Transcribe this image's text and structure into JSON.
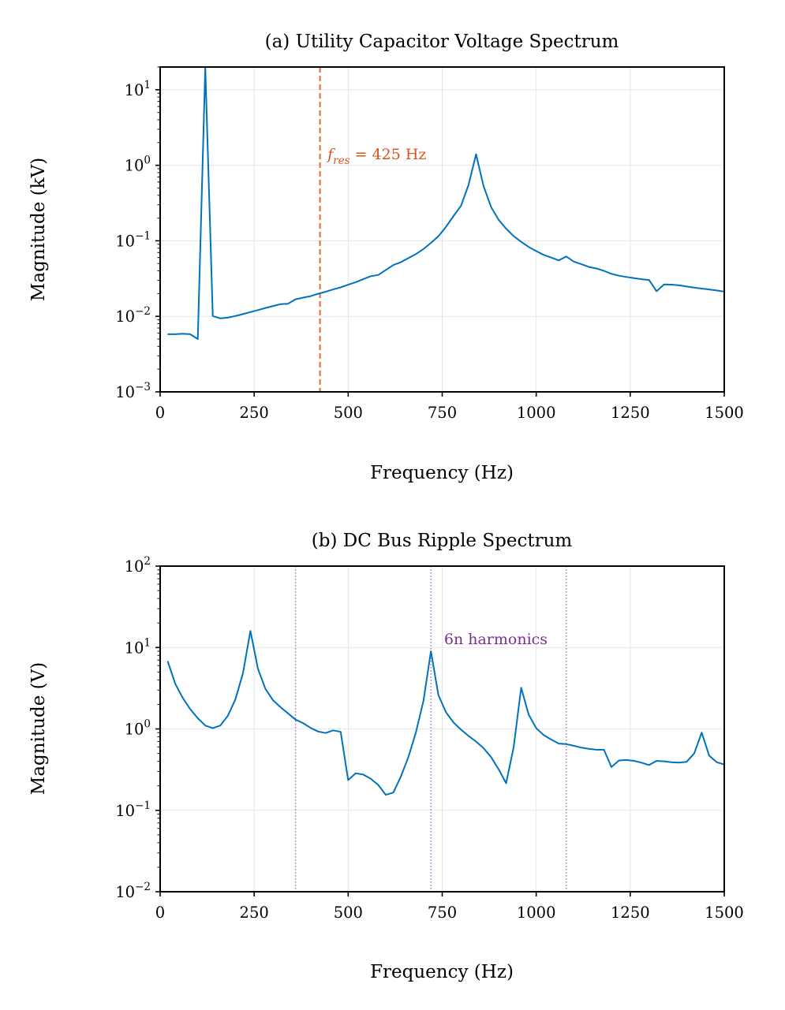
{
  "chart_data": [
    {
      "type": "line",
      "title": "(a) Utility Capacitor Voltage Spectrum",
      "xlabel": "Frequency (Hz)",
      "ylabel": "Magnitude (kV)",
      "xlim": [
        0,
        1500
      ],
      "ylim": [
        0.001,
        20
      ],
      "yscale": "log",
      "grid": true,
      "xticks": [
        "0",
        "250",
        "500",
        "750",
        "1000",
        "1250",
        "1500"
      ],
      "xtick_values": [
        0,
        250,
        500,
        750,
        1000,
        1250,
        1500
      ],
      "ytick_exponents": [
        "-3",
        "-2",
        "-1",
        "0",
        "1"
      ],
      "ytick_base": "10",
      "series_color": "#0072bd",
      "series": [
        {
          "x": [
            20,
            40,
            60,
            80,
            100,
            120,
            140,
            160,
            180,
            200,
            220,
            240,
            260,
            280,
            300,
            320,
            340,
            360,
            380,
            400,
            420,
            440,
            460,
            480,
            500,
            520,
            540,
            560,
            580,
            600,
            620,
            640,
            660,
            680,
            700,
            720,
            740,
            760,
            780,
            800,
            820,
            840,
            860,
            880,
            900,
            920,
            940,
            960,
            980,
            1000,
            1020,
            1040,
            1060,
            1080,
            1100,
            1120,
            1140,
            1160,
            1180,
            1200,
            1220,
            1240,
            1260,
            1280,
            1300,
            1320,
            1340,
            1360,
            1380,
            1400,
            1420,
            1440,
            1460,
            1480,
            1500
          ],
          "y": [
            0.0058,
            0.0058,
            0.0059,
            0.0058,
            0.005,
            20,
            0.0101,
            0.0094,
            0.0096,
            0.0101,
            0.0107,
            0.0114,
            0.0121,
            0.0129,
            0.0137,
            0.0145,
            0.0147,
            0.0168,
            0.0177,
            0.0185,
            0.0199,
            0.0211,
            0.0227,
            0.0242,
            0.0262,
            0.0283,
            0.031,
            0.034,
            0.0353,
            0.0411,
            0.0477,
            0.0521,
            0.0589,
            0.0667,
            0.0777,
            0.0938,
            0.115,
            0.153,
            0.213,
            0.29,
            0.55,
            1.4,
            0.53,
            0.28,
            0.19,
            0.145,
            0.115,
            0.097,
            0.083,
            0.073,
            0.065,
            0.06,
            0.055,
            0.062,
            0.053,
            0.049,
            0.045,
            0.043,
            0.04,
            0.0365,
            0.0345,
            0.0332,
            0.032,
            0.031,
            0.0303,
            0.0215,
            0.0265,
            0.0263,
            0.0257,
            0.0248,
            0.024,
            0.0233,
            0.0227,
            0.022,
            0.0212
          ]
        }
      ],
      "vline": {
        "x": 425,
        "color": "#e06c3a",
        "style": "dashed"
      },
      "annotation": {
        "italic_part": "f",
        "sub": "res",
        "rest": " = 425 Hz",
        "x": 445,
        "y": 1.2,
        "color": "#d9541e"
      }
    },
    {
      "type": "line",
      "title": "(b) DC Bus Ripple Spectrum",
      "xlabel": "Frequency (Hz)",
      "ylabel": "Magnitude (V)",
      "xlim": [
        0,
        1500
      ],
      "ylim": [
        0.01,
        100
      ],
      "yscale": "log",
      "grid": true,
      "xticks": [
        "0",
        "250",
        "500",
        "750",
        "1000",
        "1250",
        "1500"
      ],
      "xtick_values": [
        0,
        250,
        500,
        750,
        1000,
        1250,
        1500
      ],
      "ytick_exponents": [
        "-2",
        "-1",
        "0",
        "1",
        "2"
      ],
      "ytick_base": "10",
      "series_color": "#0072bd",
      "series": [
        {
          "x": [
            20,
            40,
            60,
            80,
            100,
            120,
            140,
            160,
            180,
            200,
            220,
            240,
            260,
            280,
            300,
            320,
            340,
            360,
            380,
            400,
            420,
            440,
            460,
            480,
            500,
            520,
            540,
            560,
            580,
            600,
            620,
            640,
            660,
            680,
            700,
            720,
            740,
            760,
            780,
            800,
            820,
            840,
            860,
            880,
            900,
            920,
            940,
            960,
            980,
            1000,
            1020,
            1040,
            1060,
            1080,
            1100,
            1120,
            1140,
            1160,
            1180,
            1200,
            1220,
            1240,
            1260,
            1280,
            1300,
            1320,
            1340,
            1360,
            1380,
            1400,
            1420,
            1440,
            1460,
            1480,
            1500
          ],
          "y": [
            6.8,
            3.6,
            2.4,
            1.75,
            1.35,
            1.1,
            1.02,
            1.1,
            1.45,
            2.3,
            4.8,
            16,
            5.5,
            3.1,
            2.25,
            1.85,
            1.55,
            1.3,
            1.18,
            1.03,
            0.93,
            0.89,
            0.96,
            0.92,
            0.235,
            0.285,
            0.275,
            0.245,
            0.205,
            0.155,
            0.165,
            0.26,
            0.45,
            0.9,
            2.2,
            9,
            2.6,
            1.6,
            1.2,
            0.98,
            0.82,
            0.7,
            0.58,
            0.45,
            0.32,
            0.215,
            0.6,
            3.2,
            1.5,
            1.02,
            0.84,
            0.74,
            0.66,
            0.65,
            0.62,
            0.59,
            0.57,
            0.555,
            0.555,
            0.34,
            0.41,
            0.415,
            0.405,
            0.385,
            0.36,
            0.405,
            0.4,
            0.39,
            0.385,
            0.395,
            0.5,
            0.9,
            0.47,
            0.39,
            0.365
          ]
        }
      ],
      "vlines": [
        {
          "x": 360,
          "color": "#a05cb4",
          "style": "dotted"
        },
        {
          "x": 720,
          "color": "#a05cb4",
          "style": "dotted"
        },
        {
          "x": 1080,
          "color": "#a05cb4",
          "style": "dotted"
        }
      ],
      "annotation": {
        "text": "6n harmonics",
        "x": 755,
        "y": 11,
        "color": "#7b2d95"
      }
    }
  ]
}
